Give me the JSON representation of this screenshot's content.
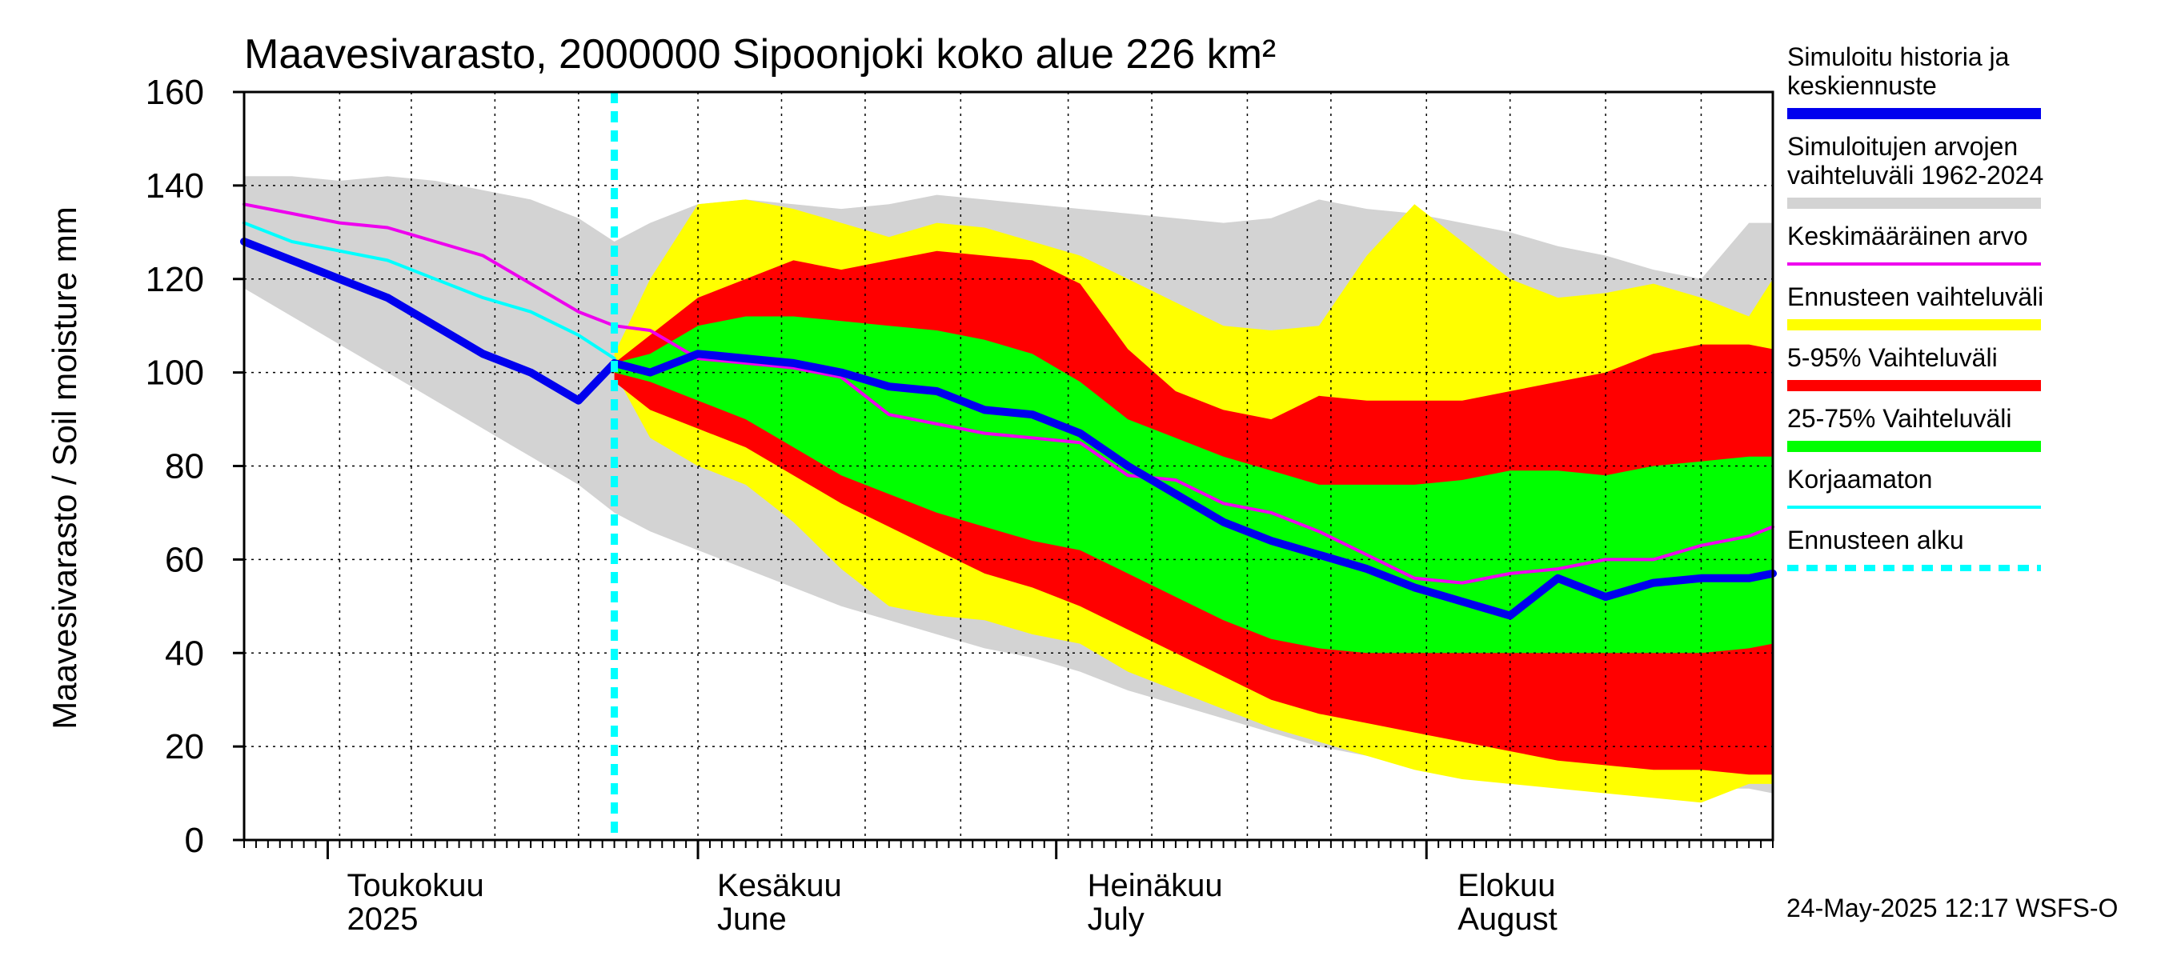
{
  "chart_data": {
    "type": "area",
    "title": "Maavesivarasto, 2000000 Sipoonjoki koko alue 226 km²",
    "ylabel": "Maavesivarasto / Soil moisture   mm",
    "xlabel": "",
    "ylim": [
      0,
      160
    ],
    "xlim_days": [
      0,
      128
    ],
    "y_ticks": [
      0,
      20,
      40,
      60,
      80,
      100,
      120,
      140,
      160
    ],
    "x_tick_days": [
      0,
      8,
      14,
      21,
      28,
      38,
      45,
      52,
      60,
      69,
      76,
      84,
      91,
      99,
      106,
      114,
      122,
      128
    ],
    "x_month_start_days": [
      7,
      38,
      68,
      99
    ],
    "month_labels": [
      {
        "day": 7,
        "fi": "Toukokuu",
        "en": "2025"
      },
      {
        "day": 38,
        "fi": "Kesäkuu",
        "en": "June"
      },
      {
        "day": 69,
        "fi": "Heinäkuu",
        "en": "July"
      },
      {
        "day": 100,
        "fi": "Elokuu",
        "en": "August"
      }
    ],
    "forecast_start_day": 31,
    "grid": true,
    "x": [
      0,
      4,
      8,
      12,
      16,
      20,
      24,
      28,
      31,
      34,
      38,
      42,
      46,
      50,
      54,
      58,
      62,
      66,
      70,
      74,
      78,
      82,
      86,
      90,
      94,
      98,
      102,
      106,
      110,
      114,
      118,
      122,
      126,
      128
    ],
    "series": [
      {
        "name": "Simuloitujen arvojen vaihteluväli 1962-2024 (max)",
        "color": "#d3d3d3",
        "role": "band_upper",
        "values": [
          142,
          142,
          141,
          142,
          141,
          139,
          137,
          133,
          128,
          132,
          136,
          137,
          136,
          135,
          136,
          138,
          137,
          136,
          135,
          134,
          133,
          132,
          133,
          137,
          135,
          134,
          132,
          130,
          127,
          125,
          122,
          120,
          132,
          132
        ]
      },
      {
        "name": "Simuloitujen arvojen vaihteluväli 1962-2024 (min)",
        "color": "#d3d3d3",
        "role": "band_lower",
        "values": [
          118,
          112,
          106,
          100,
          94,
          88,
          82,
          76,
          70,
          66,
          62,
          58,
          54,
          50,
          47,
          44,
          41,
          39,
          36,
          32,
          29,
          26,
          23,
          20,
          18,
          16,
          14,
          13,
          12,
          12,
          12,
          11,
          11,
          10
        ]
      },
      {
        "name": "Ennusteen vaihteluväli (max)",
        "color": "#ffff00",
        "role": "band_upper",
        "values": [
          null,
          null,
          null,
          null,
          null,
          null,
          null,
          null,
          104,
          120,
          136,
          137,
          135,
          132,
          129,
          132,
          131,
          128,
          125,
          120,
          115,
          110,
          109,
          110,
          125,
          136,
          128,
          120,
          116,
          117,
          119,
          116,
          112,
          120
        ]
      },
      {
        "name": "Ennusteen vaihteluväli (min)",
        "color": "#ffff00",
        "role": "band_lower",
        "values": [
          null,
          null,
          null,
          null,
          null,
          null,
          null,
          null,
          100,
          86,
          80,
          76,
          68,
          58,
          50,
          48,
          47,
          44,
          42,
          36,
          32,
          28,
          24,
          21,
          18,
          15,
          13,
          12,
          11,
          10,
          9,
          8,
          12,
          12
        ]
      },
      {
        "name": "5-95% Vaihteluväli (max)",
        "color": "#ff0000",
        "role": "band_upper",
        "values": [
          null,
          null,
          null,
          null,
          null,
          null,
          null,
          null,
          102,
          108,
          116,
          120,
          124,
          122,
          124,
          126,
          125,
          124,
          119,
          105,
          96,
          92,
          90,
          95,
          94,
          94,
          94,
          96,
          98,
          100,
          104,
          106,
          106,
          105
        ]
      },
      {
        "name": "5-95% Vaihteluväli (min)",
        "color": "#ff0000",
        "role": "band_lower",
        "values": [
          null,
          null,
          null,
          null,
          null,
          null,
          null,
          null,
          98,
          92,
          88,
          84,
          78,
          72,
          67,
          62,
          57,
          54,
          50,
          45,
          40,
          35,
          30,
          27,
          25,
          23,
          21,
          19,
          17,
          16,
          15,
          15,
          14,
          14
        ]
      },
      {
        "name": "25-75% Vaihteluväli (max)",
        "color": "#00ff00",
        "role": "band_upper",
        "values": [
          null,
          null,
          null,
          null,
          null,
          null,
          null,
          null,
          102,
          104,
          110,
          112,
          112,
          111,
          110,
          109,
          107,
          104,
          98,
          90,
          86,
          82,
          79,
          76,
          76,
          76,
          77,
          79,
          79,
          78,
          80,
          81,
          82,
          82
        ]
      },
      {
        "name": "25-75% Vaihteluväli (min)",
        "color": "#00ff00",
        "role": "band_lower",
        "values": [
          null,
          null,
          null,
          null,
          null,
          null,
          null,
          null,
          100,
          98,
          94,
          90,
          84,
          78,
          74,
          70,
          67,
          64,
          62,
          57,
          52,
          47,
          43,
          41,
          40,
          40,
          40,
          40,
          40,
          40,
          40,
          40,
          41,
          42
        ]
      },
      {
        "name": "Keskimääräinen arvo",
        "color": "#ee00ee",
        "role": "line",
        "width": 4,
        "values": [
          136,
          134,
          132,
          131,
          128,
          125,
          119,
          113,
          110,
          109,
          103,
          102,
          101,
          99,
          91,
          89,
          87,
          86,
          85,
          78,
          77,
          72,
          70,
          66,
          61,
          56,
          55,
          57,
          58,
          60,
          60,
          63,
          65,
          67
        ]
      },
      {
        "name": "Korjaamaton",
        "color": "#00ffff",
        "role": "line",
        "width": 4,
        "values": [
          132,
          128,
          126,
          124,
          120,
          116,
          113,
          108,
          103,
          null,
          null,
          null,
          null,
          null,
          null,
          null,
          null,
          null,
          null,
          null,
          null,
          null,
          null,
          null,
          null,
          null,
          null,
          null,
          null,
          null,
          null,
          null,
          null,
          null
        ]
      },
      {
        "name": "Simuloitu historia ja keskiennuste",
        "color": "#0000ee",
        "role": "line",
        "width": 10,
        "values": [
          128,
          124,
          120,
          116,
          110,
          104,
          100,
          94,
          102,
          100,
          104,
          103,
          102,
          100,
          97,
          96,
          92,
          91,
          87,
          80,
          74,
          68,
          64,
          61,
          58,
          54,
          51,
          48,
          56,
          52,
          55,
          56,
          56,
          57
        ]
      }
    ],
    "legend": {
      "placement": "right",
      "entries": [
        {
          "label_lines": [
            "Simuloitu historia ja",
            "keskiennuste"
          ],
          "color": "#0000ee",
          "style": "thick"
        },
        {
          "label_lines": [
            "Simuloitujen arvojen",
            "vaihteluväli 1962-2024"
          ],
          "color": "#d3d3d3",
          "style": "thick"
        },
        {
          "label_lines": [
            "Keskimääräinen arvo"
          ],
          "color": "#ee00ee",
          "style": "thin"
        },
        {
          "label_lines": [
            "Ennusteen vaihteluväli"
          ],
          "color": "#ffff00",
          "style": "thick"
        },
        {
          "label_lines": [
            "5-95% Vaihteluväli"
          ],
          "color": "#ff0000",
          "style": "thick"
        },
        {
          "label_lines": [
            "25-75% Vaihteluväli"
          ],
          "color": "#00ff00",
          "style": "thick"
        },
        {
          "label_lines": [
            "Korjaamaton"
          ],
          "color": "#00ffff",
          "style": "thin"
        },
        {
          "label_lines": [
            "Ennusteen alku"
          ],
          "color": "#00ffff",
          "style": "dashed"
        }
      ]
    },
    "footer": "24-May-2025 12:17 WSFS-O"
  }
}
